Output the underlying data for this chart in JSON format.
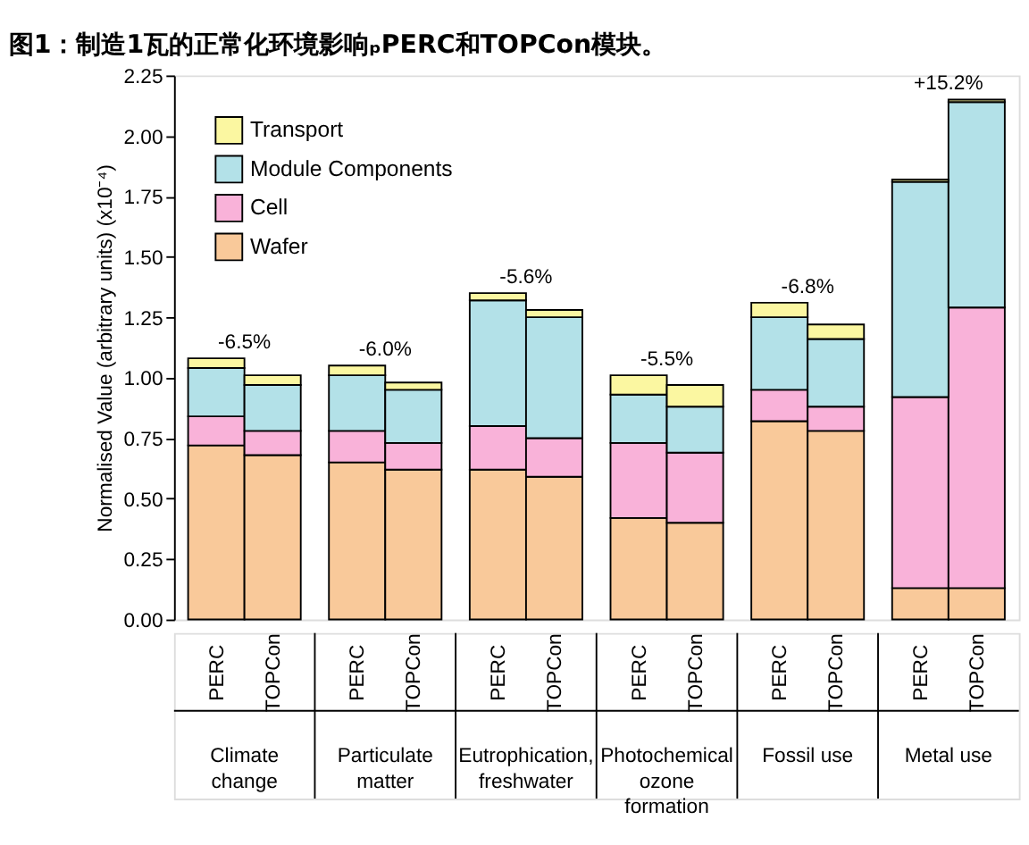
{
  "chart_data": {
    "type": "bar",
    "stacked": true,
    "title": "图1：制造1瓦的正常化环境影响ₚPERC和TOPCon模块。",
    "ylabel": "Normalised Value (arbitrary units) (x10⁻⁴)",
    "categories": [
      "PERC",
      "TOPCon",
      "PERC",
      "TOPCon",
      "PERC",
      "TOPCon",
      "PERC",
      "TOPCon",
      "PERC",
      "TOPCon",
      "PERC",
      "TOPCon"
    ],
    "series": [
      {
        "name": "Wafer",
        "color": "#f9c99a",
        "values": [
          0.72,
          0.68,
          0.65,
          0.62,
          0.62,
          0.59,
          0.42,
          0.4,
          0.82,
          0.78,
          0.13,
          0.13
        ]
      },
      {
        "name": "Cell",
        "color": "#f9b2d9",
        "values": [
          0.12,
          0.1,
          0.13,
          0.11,
          0.18,
          0.16,
          0.31,
          0.29,
          0.13,
          0.1,
          0.79,
          1.16
        ]
      },
      {
        "name": "Module Components",
        "color": "#b3e1e8",
        "values": [
          0.2,
          0.19,
          0.23,
          0.22,
          0.52,
          0.5,
          0.2,
          0.19,
          0.3,
          0.28,
          0.89,
          0.85
        ]
      },
      {
        "name": "Transport",
        "color": "#fbf7a1",
        "values": [
          0.04,
          0.04,
          0.04,
          0.03,
          0.03,
          0.03,
          0.08,
          0.09,
          0.06,
          0.06,
          0.01,
          0.01
        ]
      }
    ],
    "ylim": [
      0,
      2.25
    ],
    "yticks": [
      {
        "value": 0,
        "label": "0.00"
      },
      {
        "value": 0.25,
        "label": "0.25"
      },
      {
        "value": 0.5,
        "label": "0.50"
      },
      {
        "value": 0.75,
        "label": "0.75"
      },
      {
        "value": 1,
        "label": "1.00"
      },
      {
        "value": 1.25,
        "label": "1.25"
      },
      {
        "value": 1.5,
        "label": "1.50"
      },
      {
        "value": 1.75,
        "label": "1.75"
      },
      {
        "value": 2,
        "label": "2.00"
      },
      {
        "value": 2.25,
        "label": "2.25"
      }
    ],
    "grid": false,
    "legend": "top left",
    "annotations": [
      "Climate change",
      "Particulate matter",
      "Eutrophication, freshwater",
      "Photochemical ozone formation",
      "Fossil use",
      "Metal use",
      "-6.5%",
      "-6.0%",
      "-5.6%",
      "-5.5%",
      "-6.8%",
      "+15.2%"
    ]
  }
}
